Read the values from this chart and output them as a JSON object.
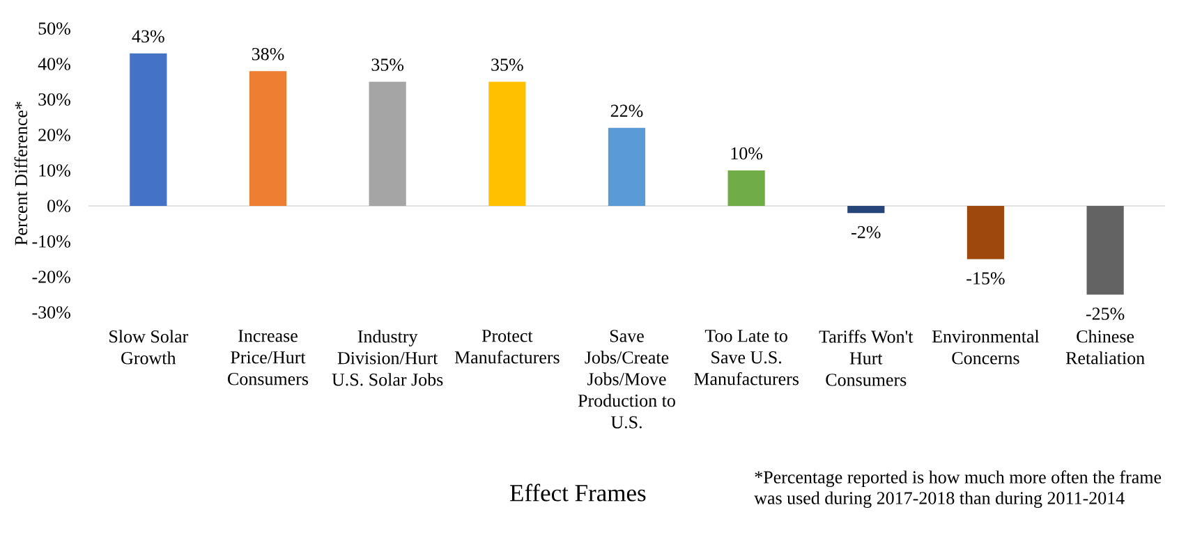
{
  "chart_data": {
    "type": "bar",
    "xlabel": "Effect Frames",
    "ylabel": "Percent Difference*",
    "categories": [
      "Slow Solar Growth",
      "Increase Price/Hurt Consumers",
      "Industry Division/Hurt U.S. Solar Jobs",
      "Protect Manufacturers",
      "Save Jobs/Create Jobs/Move Production to U.S.",
      "Too Late to Save U.S. Manufacturers",
      "Tariffs Won't Hurt Consumers",
      "Environmental Concerns",
      "Chinese Retaliation"
    ],
    "values": [
      43,
      38,
      35,
      35,
      22,
      10,
      -2,
      -15,
      -25
    ],
    "colors": [
      "#4472c4",
      "#ed7d31",
      "#a5a5a5",
      "#ffc000",
      "#5b9bd5",
      "#70ad47",
      "#264478",
      "#9e480e",
      "#636363"
    ],
    "value_labels": [
      "43%",
      "38%",
      "35%",
      "35%",
      "22%",
      "10%",
      "-2%",
      "-15%",
      "-25%"
    ],
    "ylim": [
      -30,
      50
    ],
    "yticks": [
      {
        "value": -30,
        "label": "-30%"
      },
      {
        "value": -20,
        "label": "-20%"
      },
      {
        "value": -10,
        "label": "-10%"
      },
      {
        "value": 0,
        "label": "0%"
      },
      {
        "value": 10,
        "label": "10%"
      },
      {
        "value": 20,
        "label": "20%"
      },
      {
        "value": 30,
        "label": "30%"
      },
      {
        "value": 40,
        "label": "40%"
      },
      {
        "value": 50,
        "label": "50%"
      }
    ],
    "annotations": [
      "*Percentage reported is how much more often the frame was used during 2017-2018 than during 2011-2014"
    ]
  }
}
